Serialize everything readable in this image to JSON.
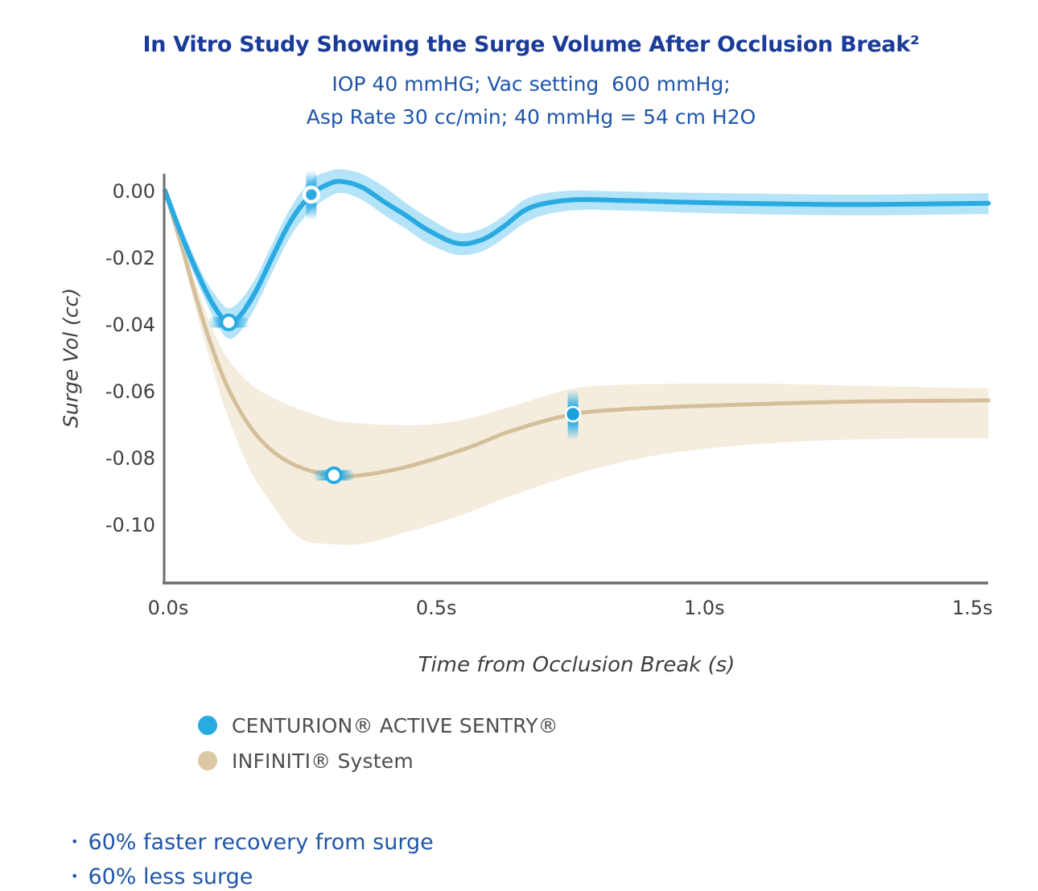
{
  "header": {
    "title": "In Vitro Study Showing the Surge Volume After Occlusion Break²",
    "subtitle1": "IOP 40 mmHG; Vac setting  600 mmHg;",
    "subtitle2": "Asp Rate 30 cc/min; 40 mmHg = 54 cm H2O",
    "title_color": "#1a3b97",
    "subtitle_color": "#1e55a9"
  },
  "chart_data": {
    "type": "line",
    "title": "In Vitro Study Showing the Surge Volume After Occlusion Break²",
    "xlabel": "Time from Occlusion Break (s)",
    "ylabel": "Surge Vol (cc)",
    "xlim": [
      0,
      1.536
    ],
    "ylim": [
      -0.118,
      0.008
    ],
    "grid": false,
    "legend_position": "below",
    "xticks": [
      {
        "v": 0.0,
        "label": "0.0s"
      },
      {
        "v": 0.5,
        "label": "0.5s"
      },
      {
        "v": 1.0,
        "label": "1.0s"
      },
      {
        "v": 1.5,
        "label": "1.5s"
      }
    ],
    "yticks": [
      {
        "v": 0.0,
        "label": "0.00"
      },
      {
        "v": -0.02,
        "label": "-0.02"
      },
      {
        "v": -0.04,
        "label": "-0.04"
      },
      {
        "v": -0.06,
        "label": "-0.06"
      },
      {
        "v": -0.08,
        "label": "-0.08"
      },
      {
        "v": -0.1,
        "label": "-0.10"
      }
    ],
    "series": [
      {
        "name": "CENTURION® ACTIVE SENTRY®",
        "color": "#29abe2",
        "band_color": "#b5e3f8",
        "x": [
          0,
          0.035,
          0.07,
          0.095,
          0.117,
          0.14,
          0.17,
          0.2,
          0.235,
          0.273,
          0.31,
          0.335,
          0.37,
          0.41,
          0.45,
          0.49,
          0.545,
          0.59,
          0.63,
          0.67,
          0.71,
          0.77,
          0.86,
          1.0,
          1.15,
          1.3,
          1.536
        ],
        "y": [
          0.0,
          -0.015,
          -0.028,
          -0.0355,
          -0.0395,
          -0.0375,
          -0.03,
          -0.02,
          -0.009,
          -0.0012,
          0.0023,
          0.0026,
          0.0008,
          -0.0035,
          -0.0075,
          -0.0118,
          -0.0158,
          -0.0148,
          -0.011,
          -0.006,
          -0.0038,
          -0.0027,
          -0.003,
          -0.0036,
          -0.004,
          -0.0042,
          -0.0038
        ],
        "upper": [
          0.0015,
          -0.0125,
          -0.025,
          -0.0315,
          -0.0352,
          -0.033,
          -0.026,
          -0.016,
          -0.005,
          0.0032,
          0.006,
          0.0063,
          0.0048,
          0.001,
          -0.0038,
          -0.008,
          -0.0126,
          -0.0115,
          -0.0078,
          -0.0028,
          -0.0008,
          0.0,
          -0.0003,
          -0.0007,
          -0.001,
          -0.0012,
          -0.0008
        ],
        "lower": [
          -0.0015,
          -0.0175,
          -0.031,
          -0.0395,
          -0.0443,
          -0.0423,
          -0.0345,
          -0.0245,
          -0.0135,
          -0.0058,
          -0.0015,
          -0.0008,
          -0.003,
          -0.0075,
          -0.0115,
          -0.0158,
          -0.0192,
          -0.0183,
          -0.0145,
          -0.0098,
          -0.0072,
          -0.0058,
          -0.006,
          -0.0067,
          -0.0072,
          -0.0074,
          -0.007
        ],
        "markers": [
          {
            "x": 0.119,
            "y": -0.0395,
            "style": "open",
            "glow": "h"
          },
          {
            "x": 0.273,
            "y": -0.0012,
            "style": "ring",
            "glow": "v"
          }
        ]
      },
      {
        "name": "INFINITI® System",
        "color": "#d5bf9b",
        "band_color": "#f4edde",
        "x": [
          0,
          0.03,
          0.06,
          0.09,
          0.12,
          0.16,
          0.2,
          0.25,
          0.315,
          0.37,
          0.44,
          0.5,
          0.57,
          0.65,
          0.761,
          0.85,
          0.95,
          1.1,
          1.3,
          1.536
        ],
        "y": [
          0.0,
          -0.016,
          -0.033,
          -0.048,
          -0.06,
          -0.071,
          -0.078,
          -0.0828,
          -0.0855,
          -0.0852,
          -0.0832,
          -0.0805,
          -0.0768,
          -0.0718,
          -0.067,
          -0.0656,
          -0.0648,
          -0.064,
          -0.0632,
          -0.0629
        ],
        "upper": [
          0.0,
          -0.014,
          -0.029,
          -0.042,
          -0.051,
          -0.058,
          -0.062,
          -0.0655,
          -0.0688,
          -0.0698,
          -0.0703,
          -0.07,
          -0.0682,
          -0.0645,
          -0.0593,
          -0.0582,
          -0.0579,
          -0.0578,
          -0.0585,
          -0.0593
        ],
        "lower": [
          0.0,
          -0.018,
          -0.037,
          -0.054,
          -0.069,
          -0.084,
          -0.094,
          -0.104,
          -0.106,
          -0.1058,
          -0.1028,
          -0.1,
          -0.0962,
          -0.0912,
          -0.0852,
          -0.0815,
          -0.0785,
          -0.076,
          -0.0745,
          -0.0742
        ],
        "markers": [
          {
            "x": 0.315,
            "y": -0.0853,
            "style": "open",
            "glow": "h"
          },
          {
            "x": 0.761,
            "y": -0.067,
            "style": "filled",
            "glow": "v"
          }
        ]
      }
    ],
    "marker_accent_color": "#29abe2",
    "axis_color": "#6d6e71",
    "tick_label_color": "#414042"
  },
  "legend": {
    "items": [
      {
        "label": "CENTURION® ACTIVE SENTRY®",
        "color": "#29abe2"
      },
      {
        "label": "INFINITI® System",
        "color": "#dcc8a3"
      }
    ]
  },
  "bullets": {
    "color": "#2056a8",
    "glyph": "•",
    "items": [
      "60% faster recovery from surge",
      "60% less surge"
    ]
  }
}
